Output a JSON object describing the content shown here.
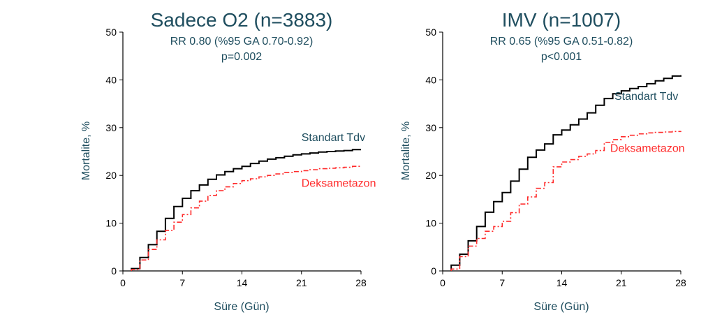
{
  "colors": {
    "text": "#1f4e5f",
    "standard": "#000000",
    "dexa": "#ff2b2b",
    "axis": "#000000"
  },
  "chart_data": [
    {
      "type": "line",
      "title": "Sadece O2 (n=3883)",
      "subtitle": "RR 0.80 (%95 GA 0.70-0.92)",
      "pvalue": "p=0.002",
      "xlabel": "Süre (Gün)",
      "ylabel": "Mortalite, %",
      "xlim": [
        0,
        28
      ],
      "ylim": [
        0,
        50
      ],
      "xticks": [
        0,
        7,
        14,
        21,
        28
      ],
      "yticks": [
        0,
        10,
        20,
        30,
        40,
        50
      ],
      "series": [
        {
          "name": "Standart Tdv",
          "style": "solid",
          "x": [
            1,
            2,
            3,
            4,
            5,
            6,
            7,
            8,
            9,
            10,
            11,
            12,
            13,
            14,
            15,
            16,
            17,
            18,
            19,
            20,
            21,
            22,
            23,
            24,
            25,
            26,
            27,
            28
          ],
          "y": [
            0.5,
            2.8,
            5.5,
            8.3,
            11.0,
            13.5,
            15.2,
            16.8,
            18.0,
            19.2,
            20.1,
            20.8,
            21.4,
            21.9,
            22.5,
            23.0,
            23.4,
            23.7,
            24.0,
            24.3,
            24.5,
            24.7,
            24.9,
            25.0,
            25.1,
            25.2,
            25.4,
            25.4
          ]
        },
        {
          "name": "Deksametazon",
          "style": "dashdot",
          "x": [
            1,
            2,
            3,
            4,
            5,
            6,
            7,
            8,
            9,
            10,
            11,
            12,
            13,
            14,
            15,
            16,
            17,
            18,
            19,
            20,
            21,
            22,
            23,
            24,
            25,
            26,
            27,
            28
          ],
          "y": [
            0.3,
            2.3,
            4.5,
            6.5,
            8.5,
            10.2,
            11.8,
            13.2,
            14.6,
            15.8,
            16.8,
            17.6,
            18.3,
            18.9,
            19.3,
            19.7,
            20.0,
            20.3,
            20.6,
            20.8,
            21.0,
            21.2,
            21.4,
            21.5,
            21.6,
            21.7,
            21.9,
            22.0
          ]
        }
      ],
      "annotations": [
        {
          "series": "Standart Tdv",
          "label": "Standart Tdv",
          "x": 21,
          "y": 27.2
        },
        {
          "series": "Deksametazon",
          "label": "Deksametazon",
          "x": 21,
          "y": 17.6
        }
      ]
    },
    {
      "type": "line",
      "title": "IMV (n=1007)",
      "subtitle": "RR 0.65 (%95 GA 0.51-0.82)",
      "pvalue": "p<0.001",
      "xlabel": "Süre (Gün)",
      "ylabel": "Mortalite, %",
      "xlim": [
        0,
        28
      ],
      "ylim": [
        0,
        50
      ],
      "xticks": [
        0,
        7,
        14,
        21,
        28
      ],
      "yticks": [
        0,
        10,
        20,
        30,
        40,
        50
      ],
      "series": [
        {
          "name": "Standart Tdv",
          "style": "solid",
          "x": [
            1,
            2,
            3,
            4,
            5,
            6,
            7,
            8,
            9,
            10,
            11,
            12,
            13,
            14,
            15,
            16,
            17,
            18,
            19,
            20,
            21,
            22,
            23,
            24,
            25,
            26,
            27,
            28
          ],
          "y": [
            1.2,
            3.5,
            6.3,
            9.3,
            12.3,
            14.5,
            16.4,
            18.8,
            21.3,
            23.8,
            25.3,
            26.6,
            28.5,
            29.5,
            30.6,
            31.8,
            33.1,
            34.7,
            36.1,
            37.1,
            37.7,
            38.2,
            38.6,
            39.2,
            39.8,
            40.3,
            40.8,
            41.0
          ]
        },
        {
          "name": "Deksametazon",
          "style": "dashdot",
          "x": [
            1,
            2,
            3,
            4,
            5,
            6,
            7,
            8,
            9,
            10,
            11,
            12,
            13,
            14,
            15,
            16,
            17,
            18,
            19,
            20,
            21,
            22,
            23,
            24,
            25,
            26,
            27,
            28
          ],
          "y": [
            0.4,
            3.0,
            5.2,
            6.8,
            8.3,
            9.3,
            10.4,
            12.2,
            14.0,
            15.5,
            17.3,
            18.5,
            21.8,
            22.8,
            23.3,
            24.0,
            24.5,
            25.2,
            26.9,
            27.5,
            28.1,
            28.4,
            28.7,
            28.9,
            29.0,
            29.1,
            29.2,
            29.3
          ]
        }
      ],
      "annotations": [
        {
          "series": "Standart Tdv",
          "label": "Standart Tdv",
          "x": 20.2,
          "y": 35.8
        },
        {
          "series": "Deksametazon",
          "label": "Deksametazon",
          "x": 19.7,
          "y": 24.9
        }
      ]
    }
  ]
}
